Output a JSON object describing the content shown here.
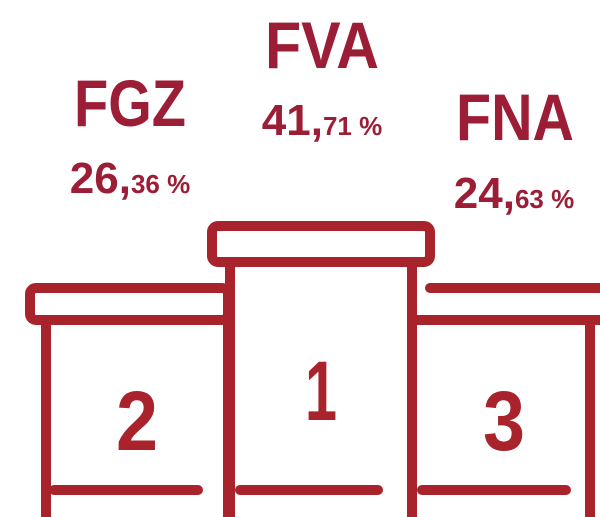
{
  "podium": [
    {
      "rank": "2",
      "name": "FGZ",
      "share": {
        "integer": "26,",
        "decimals": "36 %"
      }
    },
    {
      "rank": "1",
      "name": "FVA",
      "share": {
        "integer": "41,",
        "decimals": "71 %"
      }
    },
    {
      "rank": "3",
      "name": "FNA",
      "share": {
        "integer": "24,",
        "decimals": "63 %"
      }
    }
  ]
}
